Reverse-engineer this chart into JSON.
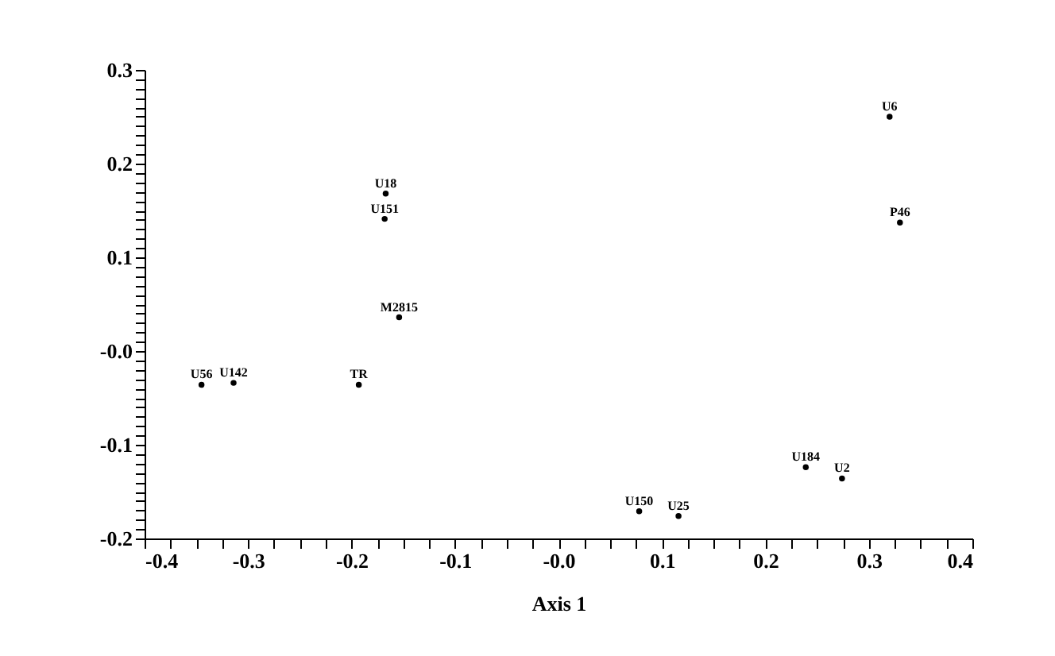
{
  "chart_data": {
    "type": "scatter",
    "xlabel": "Axis 1",
    "marker": "circle",
    "grid": false,
    "series": [
      {
        "color": "#000000",
        "x": [
          0.32,
          0.33,
          -0.167,
          -0.168,
          -0.154,
          -0.345,
          -0.314,
          -0.193,
          0.078,
          0.116,
          0.239,
          0.274
        ],
        "values": [
          0.25,
          0.137,
          0.168,
          0.141,
          0.036,
          -0.036,
          -0.034,
          -0.036,
          -0.171,
          -0.176,
          -0.124,
          -0.136
        ],
        "value_labels": [
          "U6",
          "P46",
          "U18",
          "U151",
          "M2815",
          "U56",
          "U142",
          "TR",
          "U150",
          "U25",
          "U184",
          "U2"
        ]
      }
    ],
    "xlim": [
      -0.4,
      0.4
    ],
    "xticks": [
      -0.4,
      {
        "value": -0.375,
        "label": null
      },
      {
        "value": -0.35,
        "label": null
      },
      {
        "value": -0.325,
        "label": null
      },
      -0.3,
      {
        "value": -0.275,
        "label": null
      },
      {
        "value": -0.25,
        "label": null
      },
      {
        "value": -0.225,
        "label": null
      },
      -0.2,
      {
        "value": -0.175,
        "label": null
      },
      {
        "value": -0.15,
        "label": null
      },
      {
        "value": -0.125,
        "label": null
      },
      -0.1,
      {
        "value": -0.075,
        "label": null
      },
      {
        "value": -0.05,
        "label": null
      },
      {
        "value": -0.025,
        "label": null
      },
      {
        "value": 0,
        "label": "-0.0"
      },
      {
        "value": 0.025,
        "label": null
      },
      {
        "value": 0.05,
        "label": null
      },
      {
        "value": 0.075,
        "label": null
      },
      0.1,
      {
        "value": 0.125,
        "label": null
      },
      {
        "value": 0.15,
        "label": null
      },
      {
        "value": 0.175,
        "label": null
      },
      0.2,
      {
        "value": 0.225,
        "label": null
      },
      {
        "value": 0.25,
        "label": null
      },
      {
        "value": 0.275,
        "label": null
      },
      0.3,
      {
        "value": 0.325,
        "label": null
      },
      {
        "value": 0.35,
        "label": null
      },
      {
        "value": 0.375,
        "label": null
      },
      0.4
    ],
    "ylim": [
      -0.2,
      0.3
    ],
    "yticks": [
      -0.2,
      {
        "value": -0.19,
        "label": null
      },
      {
        "value": -0.18,
        "label": null
      },
      {
        "value": -0.17,
        "label": null
      },
      {
        "value": -0.16,
        "label": null
      },
      {
        "value": -0.15,
        "label": null
      },
      {
        "value": -0.14,
        "label": null
      },
      {
        "value": -0.13,
        "label": null
      },
      {
        "value": -0.12,
        "label": null
      },
      {
        "value": -0.11,
        "label": null
      },
      -0.1,
      {
        "value": -0.09,
        "label": null
      },
      {
        "value": -0.08,
        "label": null
      },
      {
        "value": -0.07,
        "label": null
      },
      {
        "value": -0.06,
        "label": null
      },
      {
        "value": -0.05,
        "label": null
      },
      {
        "value": -0.04,
        "label": null
      },
      {
        "value": -0.03,
        "label": null
      },
      {
        "value": -0.02,
        "label": null
      },
      {
        "value": -0.01,
        "label": null
      },
      {
        "value": 0,
        "label": "-0.0"
      },
      {
        "value": 0.01,
        "label": null
      },
      {
        "value": 0.02,
        "label": null
      },
      {
        "value": 0.03,
        "label": null
      },
      {
        "value": 0.04,
        "label": null
      },
      {
        "value": 0.05,
        "label": null
      },
      {
        "value": 0.06,
        "label": null
      },
      {
        "value": 0.07,
        "label": null
      },
      {
        "value": 0.08,
        "label": null
      },
      {
        "value": 0.09,
        "label": null
      },
      0.1,
      {
        "value": 0.11,
        "label": null
      },
      {
        "value": 0.12,
        "label": null
      },
      {
        "value": 0.13,
        "label": null
      },
      {
        "value": 0.14,
        "label": null
      },
      {
        "value": 0.15,
        "label": null
      },
      {
        "value": 0.16,
        "label": null
      },
      {
        "value": 0.17,
        "label": null
      },
      {
        "value": 0.18,
        "label": null
      },
      {
        "value": 0.19,
        "label": null
      },
      0.2,
      {
        "value": 0.21,
        "label": null
      },
      {
        "value": 0.22,
        "label": null
      },
      {
        "value": 0.23,
        "label": null
      },
      {
        "value": 0.24,
        "label": null
      },
      {
        "value": 0.25,
        "label": null
      },
      {
        "value": 0.26,
        "label": null
      },
      {
        "value": 0.27,
        "label": null
      },
      {
        "value": 0.28,
        "label": null
      },
      {
        "value": 0.29,
        "label": null
      },
      0.3
    ]
  }
}
